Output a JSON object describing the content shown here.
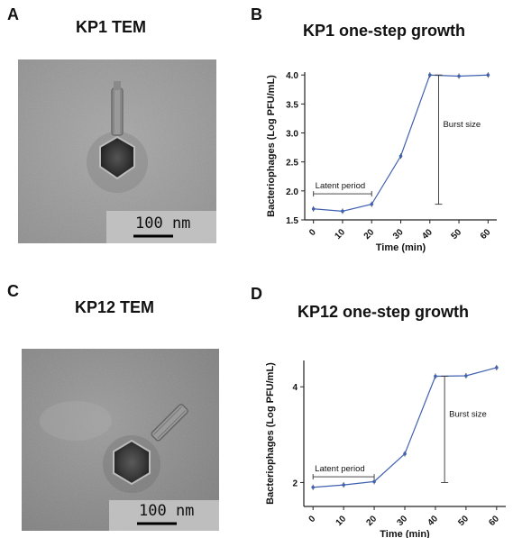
{
  "panels": {
    "a": {
      "letter": "A",
      "title": "KP1 TEM",
      "scale_bar_label": "100 nm"
    },
    "b": {
      "letter": "B",
      "title": "KP1 one-step growth"
    },
    "c": {
      "letter": "C",
      "title": "KP12 TEM",
      "scale_bar_label": "100 nm"
    },
    "d": {
      "letter": "D",
      "title": "KP12 one-step growth"
    }
  },
  "chart_data": [
    {
      "type": "line",
      "title": "KP1 one-step growth",
      "xlabel": "Time (min)",
      "ylabel": "Bacteriophages (Log PFU/mL)",
      "x": [
        0,
        10,
        20,
        30,
        40,
        50,
        60
      ],
      "series": [
        {
          "values": [
            1.69,
            1.65,
            1.77,
            2.6,
            4.0,
            3.98,
            4.0
          ]
        }
      ],
      "xlim": [
        -3,
        63
      ],
      "ylim": [
        1.5,
        4.05
      ],
      "xticks": [
        0,
        10,
        20,
        30,
        40,
        50,
        60
      ],
      "yticks": [
        1.5,
        2.0,
        2.5,
        3.0,
        3.5,
        4.0
      ],
      "ytick_labels": [
        "1.5",
        "2.0",
        "2.5",
        "3.0",
        "3.5",
        "4.0"
      ],
      "annotations": {
        "latent_period": {
          "label": "Latent period",
          "x_start": 0,
          "x_end": 20,
          "y": 1.95
        },
        "burst_size": {
          "label": "Burst size",
          "x": 43,
          "y_low": 1.77,
          "y_high": 4.0
        }
      },
      "grid": false,
      "line_color": "#4060b0"
    },
    {
      "type": "line",
      "title": "KP12 one-step growth",
      "xlabel": "Time (min)",
      "ylabel": "Bacteriophages (Log PFU/mL)",
      "x": [
        0,
        10,
        20,
        30,
        40,
        50,
        60
      ],
      "series": [
        {
          "values": [
            1.9,
            1.95,
            2.02,
            2.6,
            4.22,
            4.23,
            4.4
          ]
        }
      ],
      "xlim": [
        -3,
        63
      ],
      "ylim": [
        1.5,
        4.55
      ],
      "xticks": [
        0,
        10,
        20,
        30,
        40,
        50,
        60
      ],
      "yticks": [
        2,
        4
      ],
      "ytick_labels": [
        "2",
        "4"
      ],
      "annotations": {
        "latent_period": {
          "label": "Latent period",
          "x_start": 0,
          "x_end": 20,
          "y": 2.12
        },
        "burst_size": {
          "label": "Burst size",
          "x": 43,
          "y_low": 2.0,
          "y_high": 4.22
        }
      },
      "grid": false,
      "line_color": "#4060b0"
    }
  ]
}
